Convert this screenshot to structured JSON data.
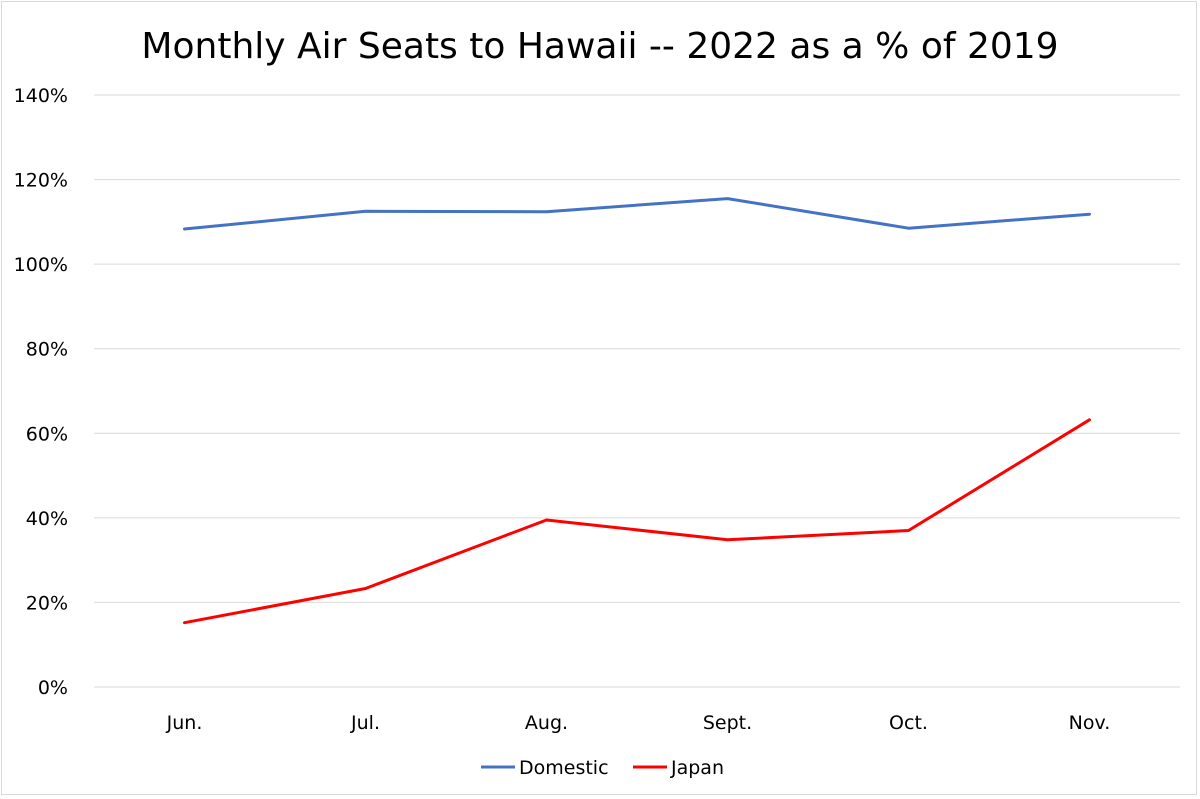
{
  "chart_data": {
    "type": "line",
    "title": "Monthly Air Seats to Hawaii -- 2022 as a % of 2019",
    "xlabel": "",
    "ylabel": "",
    "categories": [
      "Jun.",
      "Jul.",
      "Aug.",
      "Sept.",
      "Oct.",
      "Nov."
    ],
    "ylim": [
      0,
      140
    ],
    "yticks": [
      0,
      20,
      40,
      60,
      80,
      100,
      120,
      140
    ],
    "ytick_labels": [
      "0%",
      "20%",
      "40%",
      "60%",
      "80%",
      "100%",
      "120%",
      "140%"
    ],
    "grid": true,
    "legend_position": "bottom-center",
    "series": [
      {
        "name": "Domestic",
        "color": "#4472C4",
        "values": [
          108.3,
          112.5,
          112.4,
          115.5,
          108.5,
          111.8
        ]
      },
      {
        "name": "Japan",
        "color": "#FF0000",
        "values": [
          15.2,
          23.3,
          39.5,
          34.8,
          37.0,
          63.2
        ]
      }
    ]
  }
}
